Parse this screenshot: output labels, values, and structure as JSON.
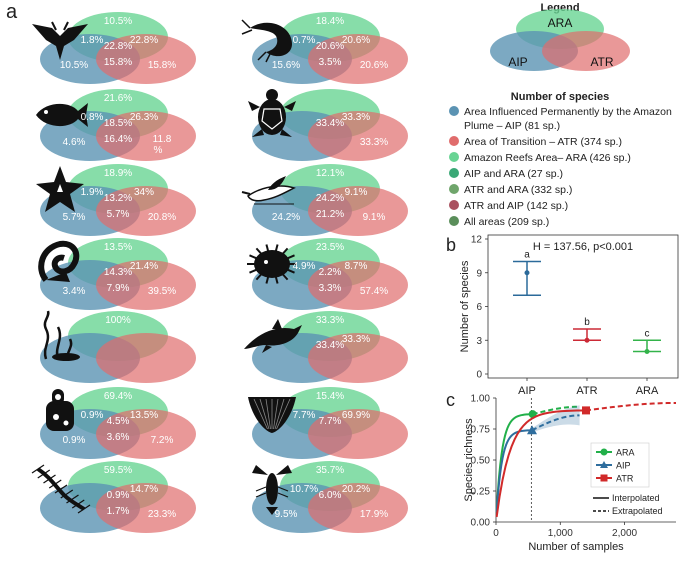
{
  "panel_labels": {
    "a": "a",
    "b": "b",
    "c": "c"
  },
  "colors": {
    "aip": "#5b93b3",
    "atr": "#e06c6c",
    "ara": "#69d494",
    "aip_ara": "#3aa876",
    "atr_ara": "#6fa56b",
    "atr_aip": "#a9515f",
    "all": "#5a8e5a"
  },
  "venns": [
    {
      "icon": "manta-ray-icon",
      "ara": "10.5%",
      "aip_ara": "1.8%",
      "atr_ara": "22.8%",
      "all": "22.8%",
      "aip": "10.5%",
      "atr_aip": "15.8%",
      "atr": "15.8%"
    },
    {
      "icon": "shrimp-icon",
      "ara": "18.4%",
      "aip_ara": "0.7%",
      "atr_ara": "20.6%",
      "all": "20.6%",
      "aip": "15.6%",
      "atr_aip": "3.5%",
      "atr": "20.6%"
    },
    {
      "icon": "fish-icon",
      "ara": "21.6%",
      "aip_ara": "0.8%",
      "atr_ara": "26.3%",
      "all": "18.5%",
      "aip": "4.6%",
      "atr_aip": "16.4%",
      "atr": "11.8 %"
    },
    {
      "icon": "turtle-icon",
      "ara": "",
      "aip_ara": "",
      "atr_ara": "33.3%",
      "all": "33.4%",
      "aip": "",
      "atr_aip": "",
      "atr": "33.3%"
    },
    {
      "icon": "starfish-icon",
      "ara": "18.9%",
      "aip_ara": "1.9%",
      "atr_ara": "34%",
      "all": "13.2%",
      "aip": "5.7%",
      "atr_aip": "5.7%",
      "atr": "20.8%"
    },
    {
      "icon": "seabird-icon",
      "ara": "12.1%",
      "aip_ara": "",
      "atr_ara": "9.1%",
      "all": "24.2%",
      "aip": "24.2%",
      "atr_aip": "21.2%",
      "atr": "9.1%"
    },
    {
      "icon": "gastropod-icon",
      "ara": "13.5%",
      "aip_ara": "",
      "atr_ara": "21.4%",
      "all": "14.3%",
      "aip": "3.4%",
      "atr_aip": "7.9%",
      "atr": "39.5%"
    },
    {
      "icon": "sea-urchin-icon",
      "ara": "23.5%",
      "aip_ara": "4.9%",
      "atr_ara": "8.7%",
      "all": "2.2%",
      "aip": "",
      "atr_aip": "3.3%",
      "atr": "57.4%"
    },
    {
      "icon": "seaweed-icon",
      "ara": "100%",
      "aip_ara": "",
      "atr_ara": "",
      "all": "",
      "aip": "",
      "atr_aip": "",
      "atr": ""
    },
    {
      "icon": "dolphin-icon",
      "ara": "33.3%",
      "aip_ara": "",
      "atr_ara": "33.3%",
      "all": "33.4%",
      "aip": "",
      "atr_aip": "",
      "atr": ""
    },
    {
      "icon": "sponge-icon",
      "ara": "69.4%",
      "aip_ara": "0.9%",
      "atr_ara": "13.5%",
      "all": "4.5%",
      "aip": "0.9%",
      "atr_aip": "3.6%",
      "atr": "7.2%"
    },
    {
      "icon": "bivalve-icon",
      "ara": "15.4%",
      "aip_ara": "7.7%",
      "atr_ara": "69.9%",
      "all": "7.7%",
      "aip": "",
      "atr_aip": "",
      "atr": ""
    },
    {
      "icon": "polychaete-icon",
      "ara": "59.5%",
      "aip_ara": "",
      "atr_ara": "14.7%",
      "all": "0.9%",
      "aip": "",
      "atr_aip": "1.7%",
      "atr": "23.3%"
    },
    {
      "icon": "lobster-icon",
      "ara": "35.7%",
      "aip_ara": "10.7%",
      "atr_ara": "20.2%",
      "all": "6.0%",
      "aip": "9.5%",
      "atr_aip": "",
      "atr": "17.9%"
    }
  ],
  "legend": {
    "title": "Legend",
    "ara": "ARA",
    "aip": "AIP",
    "atr": "ATR",
    "species_title": "Number of species",
    "items": [
      {
        "key": "aip",
        "text": "Area Influenced Permanently by the Amazon",
        "text2": "Plume – AIP (81 sp.)"
      },
      {
        "key": "atr",
        "text": "Area of Transition – ATR (374 sp.)"
      },
      {
        "key": "ara",
        "text": "Amazon Reefs Area– ARA (426 sp.)"
      },
      {
        "key": "aip_ara",
        "text": "AIP and ARA (27 sp.)"
      },
      {
        "key": "atr_ara",
        "text": "ATR and ARA (332 sp.)"
      },
      {
        "key": "atr_aip",
        "text": "ATR and AIP (142 sp.)"
      },
      {
        "key": "all",
        "text": "All areas (209 sp.)"
      }
    ]
  },
  "chart_data": [
    {
      "type": "scatter",
      "title": "H = 137.56, p<0.001",
      "xlabel": "",
      "ylabel": "Number of species",
      "categories": [
        "AIP",
        "ATR",
        "ARA"
      ],
      "values": [
        9,
        3,
        2
      ],
      "lower": [
        7,
        3,
        2
      ],
      "upper": [
        10,
        4,
        3
      ],
      "letters": [
        "a",
        "b",
        "c"
      ],
      "colors": [
        "#2b6a9a",
        "#cc2a36",
        "#33b34a"
      ],
      "ylim": [
        0,
        12
      ],
      "yticks": [
        0,
        3,
        6,
        9,
        12
      ]
    },
    {
      "type": "line",
      "xlabel": "Number of samples",
      "ylabel": "Species richness",
      "xlim": [
        0,
        2800
      ],
      "ylim": [
        0,
        1.0
      ],
      "xticks": [
        0,
        1000,
        2000
      ],
      "xtick_labels": [
        "0",
        "1,000",
        "2,000"
      ],
      "yticks": [
        0,
        0.25,
        0.5,
        0.75,
        1.0
      ],
      "ytick_labels": [
        "0.00",
        "0.25",
        "0.50",
        "0.75",
        "1.00"
      ],
      "vline": 550,
      "series": [
        {
          "name": "ARA",
          "color": "#22b04a",
          "marker": "circle",
          "ref_x": 570,
          "ref_y": 0.87,
          "end_x": 1300,
          "end_y": 0.93
        },
        {
          "name": "AIP",
          "color": "#2f6e9e",
          "marker": "triangle",
          "ref_x": 560,
          "ref_y": 0.74,
          "end_x": 1300,
          "end_y": 0.86
        },
        {
          "name": "ATR",
          "color": "#d12a2a",
          "marker": "square",
          "ref_x": 1400,
          "ref_y": 0.9,
          "end_x": 2800,
          "end_y": 0.96
        }
      ],
      "line_legend": {
        "interpolated": "Interpolated",
        "extrapolated": "Extrapolated"
      }
    }
  ]
}
